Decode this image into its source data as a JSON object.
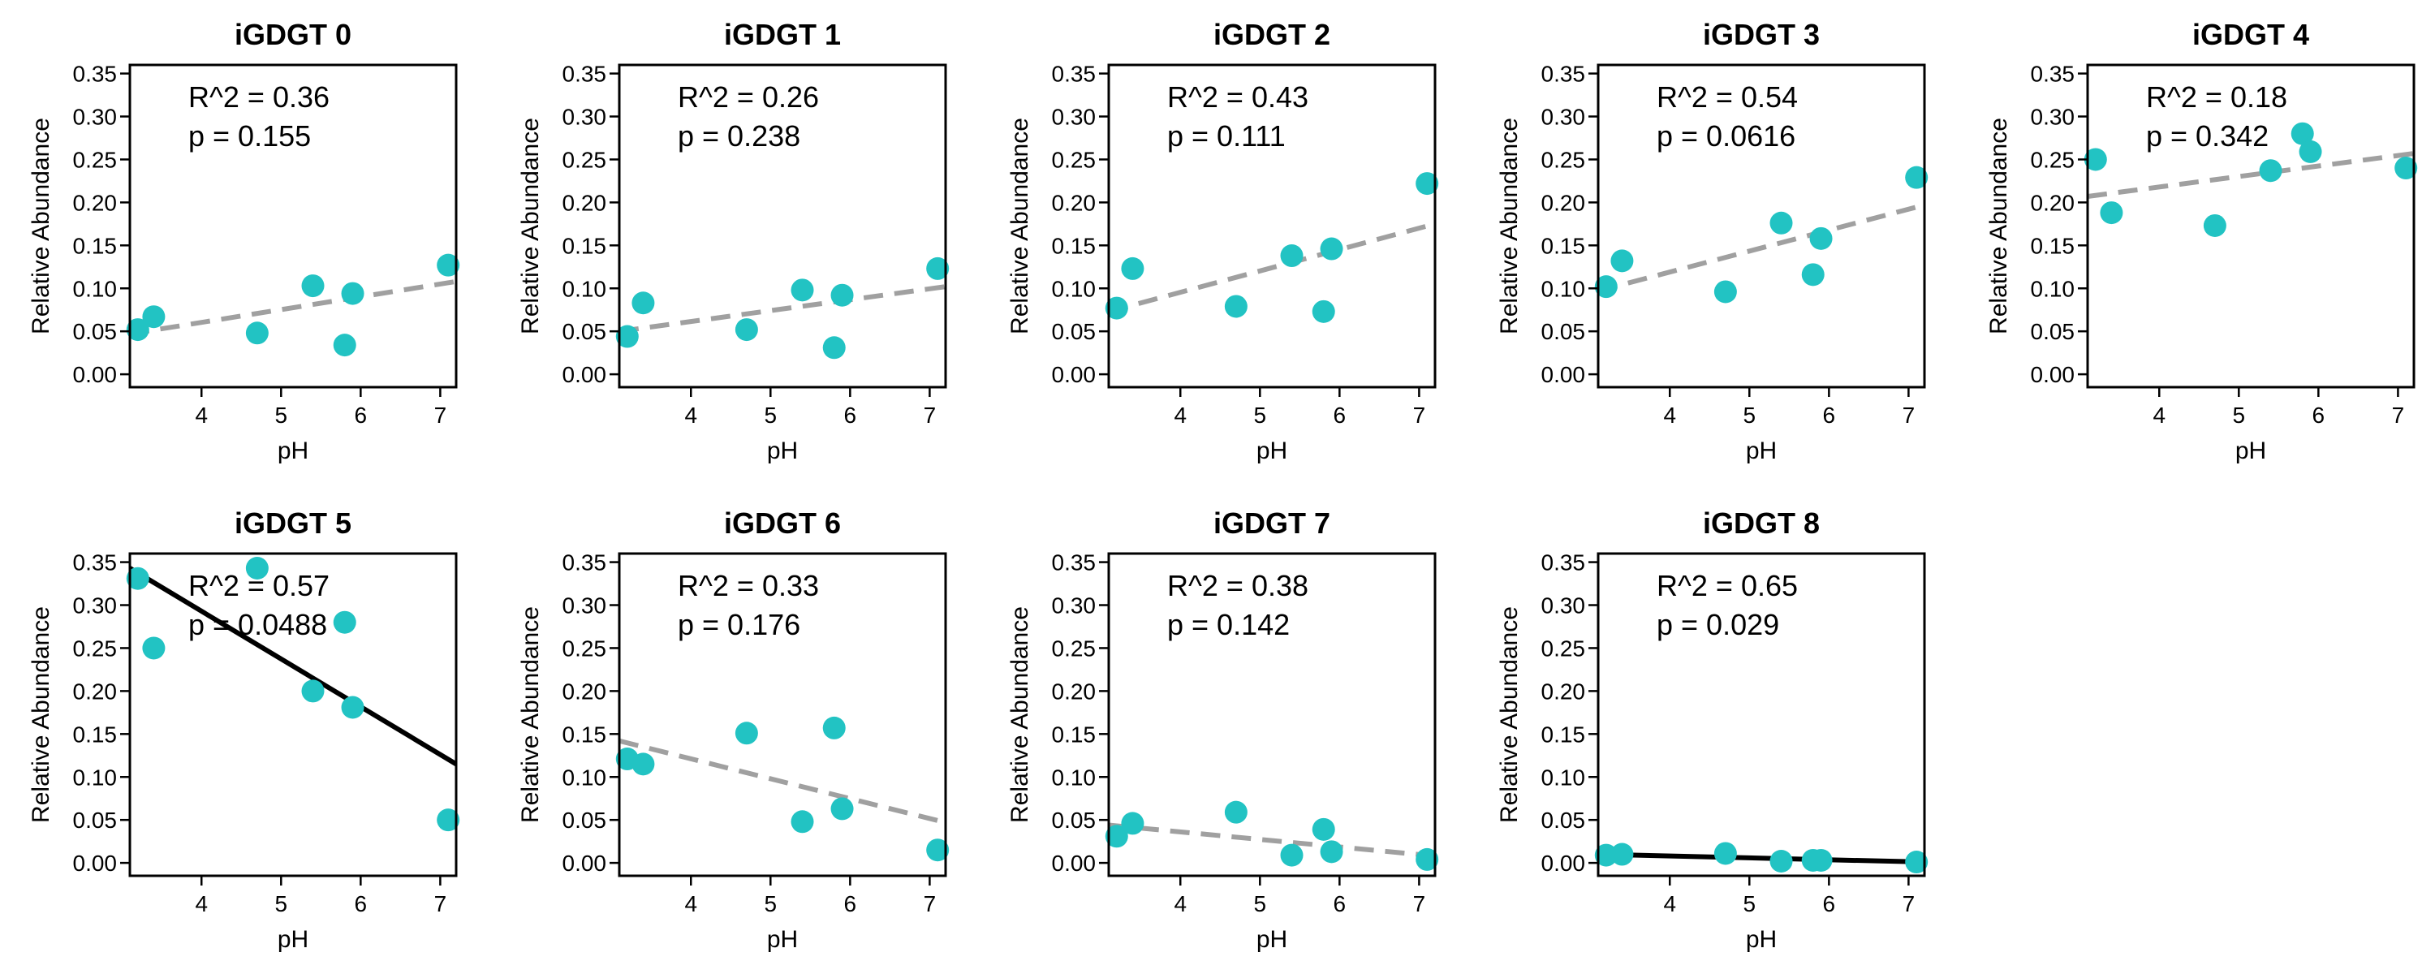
{
  "chart_data": [
    {
      "type": "scatter",
      "title": "iGDGT 0",
      "xlabel": "pH",
      "ylabel": "Relative Abundance",
      "xlim": [
        3.1,
        7.2
      ],
      "ylim": [
        -0.015,
        0.36
      ],
      "xticks": [
        "4",
        "5",
        "6",
        "7"
      ],
      "yticks": [
        "0.00",
        "0.05",
        "0.10",
        "0.15",
        "0.20",
        "0.25",
        "0.30",
        "0.35"
      ],
      "x": [
        3.2,
        3.4,
        4.7,
        5.4,
        5.8,
        5.9,
        7.1
      ],
      "y": [
        0.052,
        0.067,
        0.048,
        0.103,
        0.034,
        0.094,
        0.127
      ],
      "fit": {
        "x": [
          3.1,
          7.2
        ],
        "y": [
          0.047,
          0.108
        ],
        "style": "dashed",
        "color": "#a0a0a0"
      },
      "r2_label": "R^2 = 0.36",
      "p_label": "p = 0.155"
    },
    {
      "type": "scatter",
      "title": "iGDGT 1",
      "xlabel": "pH",
      "ylabel": "Relative Abundance",
      "xlim": [
        3.1,
        7.2
      ],
      "ylim": [
        -0.015,
        0.36
      ],
      "xticks": [
        "4",
        "5",
        "6",
        "7"
      ],
      "yticks": [
        "0.00",
        "0.05",
        "0.10",
        "0.15",
        "0.20",
        "0.25",
        "0.30",
        "0.35"
      ],
      "x": [
        3.2,
        3.4,
        4.7,
        5.4,
        5.8,
        5.9,
        7.1
      ],
      "y": [
        0.044,
        0.083,
        0.052,
        0.098,
        0.031,
        0.092,
        0.123
      ],
      "fit": {
        "x": [
          3.1,
          7.2
        ],
        "y": [
          0.05,
          0.102
        ],
        "style": "dashed",
        "color": "#a0a0a0"
      },
      "r2_label": "R^2 = 0.26",
      "p_label": "p = 0.238"
    },
    {
      "type": "scatter",
      "title": "iGDGT 2",
      "xlabel": "pH",
      "ylabel": "Relative Abundance",
      "xlim": [
        3.1,
        7.2
      ],
      "ylim": [
        -0.015,
        0.36
      ],
      "xticks": [
        "4",
        "5",
        "6",
        "7"
      ],
      "yticks": [
        "0.00",
        "0.05",
        "0.10",
        "0.15",
        "0.20",
        "0.25",
        "0.30",
        "0.35"
      ],
      "x": [
        3.2,
        3.4,
        4.7,
        5.4,
        5.8,
        5.9,
        7.1
      ],
      "y": [
        0.077,
        0.123,
        0.079,
        0.138,
        0.073,
        0.146,
        0.222
      ],
      "fit": {
        "x": [
          3.1,
          7.2
        ],
        "y": [
          0.073,
          0.175
        ],
        "style": "dashed",
        "color": "#a0a0a0"
      },
      "r2_label": "R^2 = 0.43",
      "p_label": "p = 0.111"
    },
    {
      "type": "scatter",
      "title": "iGDGT 3",
      "xlabel": "pH",
      "ylabel": "Relative Abundance",
      "xlim": [
        3.1,
        7.2
      ],
      "ylim": [
        -0.015,
        0.36
      ],
      "xticks": [
        "4",
        "5",
        "6",
        "7"
      ],
      "yticks": [
        "0.00",
        "0.05",
        "0.10",
        "0.15",
        "0.20",
        "0.25",
        "0.30",
        "0.35"
      ],
      "x": [
        3.2,
        3.4,
        4.7,
        5.4,
        5.8,
        5.9,
        7.1
      ],
      "y": [
        0.102,
        0.132,
        0.096,
        0.176,
        0.116,
        0.158,
        0.229
      ],
      "fit": {
        "x": [
          3.1,
          7.2
        ],
        "y": [
          0.097,
          0.197
        ],
        "style": "dashed",
        "color": "#a0a0a0"
      },
      "r2_label": "R^2 = 0.54",
      "p_label": "p = 0.0616"
    },
    {
      "type": "scatter",
      "title": "iGDGT 4",
      "xlabel": "pH",
      "ylabel": "Relative Abundance",
      "xlim": [
        3.1,
        7.2
      ],
      "ylim": [
        -0.015,
        0.36
      ],
      "xticks": [
        "4",
        "5",
        "6",
        "7"
      ],
      "yticks": [
        "0.00",
        "0.05",
        "0.10",
        "0.15",
        "0.20",
        "0.25",
        "0.30",
        "0.35"
      ],
      "x": [
        3.2,
        3.4,
        4.7,
        5.4,
        5.8,
        5.9,
        7.1
      ],
      "y": [
        0.25,
        0.188,
        0.173,
        0.237,
        0.28,
        0.259,
        0.24
      ],
      "fit": {
        "x": [
          3.1,
          7.2
        ],
        "y": [
          0.207,
          0.257
        ],
        "style": "dashed",
        "color": "#a0a0a0"
      },
      "r2_label": "R^2 = 0.18",
      "p_label": "p = 0.342"
    },
    {
      "type": "scatter",
      "title": "iGDGT 5",
      "xlabel": "pH",
      "ylabel": "Relative Abundance",
      "xlim": [
        3.1,
        7.2
      ],
      "ylim": [
        -0.015,
        0.36
      ],
      "xticks": [
        "4",
        "5",
        "6",
        "7"
      ],
      "yticks": [
        "0.00",
        "0.05",
        "0.10",
        "0.15",
        "0.20",
        "0.25",
        "0.30",
        "0.35"
      ],
      "x": [
        3.2,
        3.4,
        4.7,
        5.4,
        5.8,
        5.9,
        7.1
      ],
      "y": [
        0.331,
        0.25,
        0.343,
        0.2,
        0.28,
        0.181,
        0.05
      ],
      "fit": {
        "x": [
          3.1,
          7.2
        ],
        "y": [
          0.343,
          0.115
        ],
        "style": "solid",
        "color": "#000000"
      },
      "r2_label": "R^2 = 0.57",
      "p_label": "p = 0.0488"
    },
    {
      "type": "scatter",
      "title": "iGDGT 6",
      "xlabel": "pH",
      "ylabel": "Relative Abundance",
      "xlim": [
        3.1,
        7.2
      ],
      "ylim": [
        -0.015,
        0.36
      ],
      "xticks": [
        "4",
        "5",
        "6",
        "7"
      ],
      "yticks": [
        "0.00",
        "0.05",
        "0.10",
        "0.15",
        "0.20",
        "0.25",
        "0.30",
        "0.35"
      ],
      "x": [
        3.2,
        3.4,
        4.7,
        5.4,
        5.8,
        5.9,
        7.1
      ],
      "y": [
        0.121,
        0.115,
        0.151,
        0.048,
        0.157,
        0.063,
        0.015
      ],
      "fit": {
        "x": [
          3.1,
          7.2
        ],
        "y": [
          0.142,
          0.047
        ],
        "style": "dashed",
        "color": "#a0a0a0"
      },
      "r2_label": "R^2 = 0.33",
      "p_label": "p = 0.176"
    },
    {
      "type": "scatter",
      "title": "iGDGT 7",
      "xlabel": "pH",
      "ylabel": "Relative Abundance",
      "xlim": [
        3.1,
        7.2
      ],
      "ylim": [
        -0.015,
        0.36
      ],
      "xticks": [
        "4",
        "5",
        "6",
        "7"
      ],
      "yticks": [
        "0.00",
        "0.05",
        "0.10",
        "0.15",
        "0.20",
        "0.25",
        "0.30",
        "0.35"
      ],
      "x": [
        3.2,
        3.4,
        4.7,
        5.4,
        5.8,
        5.9,
        7.1
      ],
      "y": [
        0.031,
        0.046,
        0.059,
        0.009,
        0.039,
        0.013,
        0.004
      ],
      "fit": {
        "x": [
          3.1,
          7.2
        ],
        "y": [
          0.044,
          0.008
        ],
        "style": "dashed",
        "color": "#a0a0a0"
      },
      "r2_label": "R^2 = 0.38",
      "p_label": "p = 0.142"
    },
    {
      "type": "scatter",
      "title": "iGDGT 8",
      "xlabel": "pH",
      "ylabel": "Relative Abundance",
      "xlim": [
        3.1,
        7.2
      ],
      "ylim": [
        -0.015,
        0.36
      ],
      "xticks": [
        "4",
        "5",
        "6",
        "7"
      ],
      "yticks": [
        "0.00",
        "0.05",
        "0.10",
        "0.15",
        "0.20",
        "0.25",
        "0.30",
        "0.35"
      ],
      "x": [
        3.2,
        3.4,
        4.7,
        5.4,
        5.8,
        5.9,
        7.1
      ],
      "y": [
        0.009,
        0.01,
        0.011,
        0.002,
        0.003,
        0.003,
        0.001
      ],
      "fit": {
        "x": [
          3.1,
          7.2
        ],
        "y": [
          0.01,
          0.001
        ],
        "style": "solid",
        "color": "#000000"
      },
      "r2_label": "R^2 = 0.65",
      "p_label": "p = 0.029"
    }
  ],
  "colors": {
    "points": "#22c3c3",
    "axis": "#000000"
  }
}
